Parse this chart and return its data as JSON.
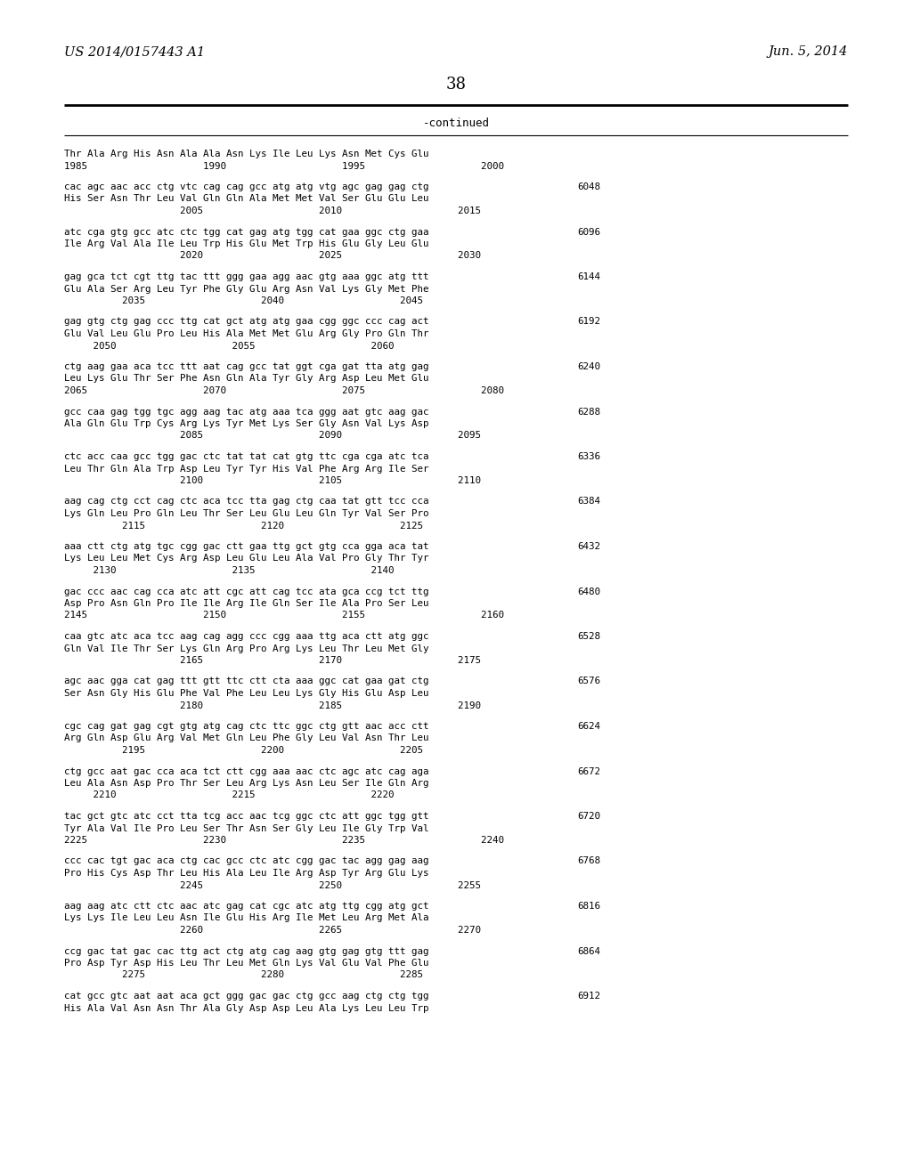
{
  "header_left": "US 2014/0157443 A1",
  "header_right": "Jun. 5, 2014",
  "page_number": "38",
  "continued_label": "-continued",
  "background_color": "#ffffff",
  "text_color": "#000000",
  "content": [
    {
      "dna": "Thr Ala Arg His Asn Ala Ala Asn Lys Ile Leu Lys Asn Met Cys Glu",
      "aa": "",
      "num": "",
      "pos": "1985                    1990                    1995                    2000"
    },
    {
      "dna": "cac agc aac acc ctg vtc cag cag gcc atg atg vtg agc gag gag ctg",
      "aa": "His Ser Asn Thr Leu Val Gln Gln Ala Met Met Val Ser Glu Glu Leu",
      "num": "6048",
      "pos": "                    2005                    2010                    2015"
    },
    {
      "dna": "atc cga gtg gcc atc ctc tgg cat gag atg tgg cat gaa ggc ctg gaa",
      "aa": "Ile Arg Val Ala Ile Leu Trp His Glu Met Trp His Glu Gly Leu Glu",
      "num": "6096",
      "pos": "                    2020                    2025                    2030"
    },
    {
      "dna": "gag gca tct cgt ttg tac ttt ggg gaa agg aac gtg aaa ggc atg ttt",
      "aa": "Glu Ala Ser Arg Leu Tyr Phe Gly Glu Arg Asn Val Lys Gly Met Phe",
      "num": "6144",
      "pos": "          2035                    2040                    2045"
    },
    {
      "dna": "gag gtg ctg gag ccc ttg cat gct atg atg gaa cgg ggc ccc cag act",
      "aa": "Glu Val Leu Glu Pro Leu His Ala Met Met Glu Arg Gly Pro Gln Thr",
      "num": "6192",
      "pos": "     2050                    2055                    2060"
    },
    {
      "dna": "ctg aag gaa aca tcc ttt aat cag gcc tat ggt cga gat tta atg gag",
      "aa": "Leu Lys Glu Thr Ser Phe Asn Gln Ala Tyr Gly Arg Asp Leu Met Glu",
      "num": "6240",
      "pos": "2065                    2070                    2075                    2080"
    },
    {
      "dna": "gcc caa gag tgg tgc agg aag tac atg aaa tca ggg aat gtc aag gac",
      "aa": "Ala Gln Glu Trp Cys Arg Lys Tyr Met Lys Ser Gly Asn Val Lys Asp",
      "num": "6288",
      "pos": "                    2085                    2090                    2095"
    },
    {
      "dna": "ctc acc caa gcc tgg gac ctc tat tat cat gtg ttc cga cga atc tca",
      "aa": "Leu Thr Gln Ala Trp Asp Leu Tyr Tyr His Val Phe Arg Arg Ile Ser",
      "num": "6336",
      "pos": "                    2100                    2105                    2110"
    },
    {
      "dna": "aag cag ctg cct cag ctc aca tcc tta gag ctg caa tat gtt tcc cca",
      "aa": "Lys Gln Leu Pro Gln Leu Thr Ser Leu Glu Leu Gln Tyr Val Ser Pro",
      "num": "6384",
      "pos": "          2115                    2120                    2125"
    },
    {
      "dna": "aaa ctt ctg atg tgc cgg gac ctt gaa ttg gct gtg cca gga aca tat",
      "aa": "Lys Leu Leu Met Cys Arg Asp Leu Glu Leu Ala Val Pro Gly Thr Tyr",
      "num": "6432",
      "pos": "     2130                    2135                    2140"
    },
    {
      "dna": "gac ccc aac cag cca atc att cgc att cag tcc ata gca ccg tct ttg",
      "aa": "Asp Pro Asn Gln Pro Ile Ile Arg Ile Gln Ser Ile Ala Pro Ser Leu",
      "num": "6480",
      "pos": "2145                    2150                    2155                    2160"
    },
    {
      "dna": "caa gtc atc aca tcc aag cag agg ccc cgg aaa ttg aca ctt atg ggc",
      "aa": "Gln Val Ile Thr Ser Lys Gln Arg Pro Arg Lys Leu Thr Leu Met Gly",
      "num": "6528",
      "pos": "                    2165                    2170                    2175"
    },
    {
      "dna": "agc aac gga cat gag ttt gtt ttc ctt cta aaa ggc cat gaa gat ctg",
      "aa": "Ser Asn Gly His Glu Phe Val Phe Leu Leu Lys Gly His Glu Asp Leu",
      "num": "6576",
      "pos": "                    2180                    2185                    2190"
    },
    {
      "dna": "cgc cag gat gag cgt gtg atg cag ctc ttc ggc ctg gtt aac acc ctt",
      "aa": "Arg Gln Asp Glu Arg Val Met Gln Leu Phe Gly Leu Val Asn Thr Leu",
      "num": "6624",
      "pos": "          2195                    2200                    2205"
    },
    {
      "dna": "ctg gcc aat gac cca aca tct ctt cgg aaa aac ctc agc atc cag aga",
      "aa": "Leu Ala Asn Asp Pro Thr Ser Leu Arg Lys Asn Leu Ser Ile Gln Arg",
      "num": "6672",
      "pos": "     2210                    2215                    2220"
    },
    {
      "dna": "tac gct gtc atc cct tta tcg acc aac tcg ggc ctc att ggc tgg gtt",
      "aa": "Tyr Ala Val Ile Pro Leu Ser Thr Asn Ser Gly Leu Ile Gly Trp Val",
      "num": "6720",
      "pos": "2225                    2230                    2235                    2240"
    },
    {
      "dna": "ccc cac tgt gac aca ctg cac gcc ctc atc cgg gac tac agg gag aag",
      "aa": "Pro His Cys Asp Thr Leu His Ala Leu Ile Arg Asp Tyr Arg Glu Lys",
      "num": "6768",
      "pos": "                    2245                    2250                    2255"
    },
    {
      "dna": "aag aag atc ctt ctc aac atc gag cat cgc atc atg ttg cgg atg gct",
      "aa": "Lys Lys Ile Leu Leu Asn Ile Glu His Arg Ile Met Leu Arg Met Ala",
      "num": "6816",
      "pos": "                    2260                    2265                    2270"
    },
    {
      "dna": "ccg gac tat gac cac ttg act ctg atg cag aag gtg gag gtg ttt gag",
      "aa": "Pro Asp Tyr Asp His Leu Thr Leu Met Gln Lys Val Glu Val Phe Glu",
      "num": "6864",
      "pos": "          2275                    2280                    2285"
    },
    {
      "dna": "cat gcc gtc aat aat aca gct ggg gac gac ctg gcc aag ctg ctg tgg",
      "aa": "His Ala Val Asn Asn Thr Ala Gly Asp Asp Leu Ala Lys Leu Leu Trp",
      "num": "6912",
      "pos": ""
    }
  ]
}
